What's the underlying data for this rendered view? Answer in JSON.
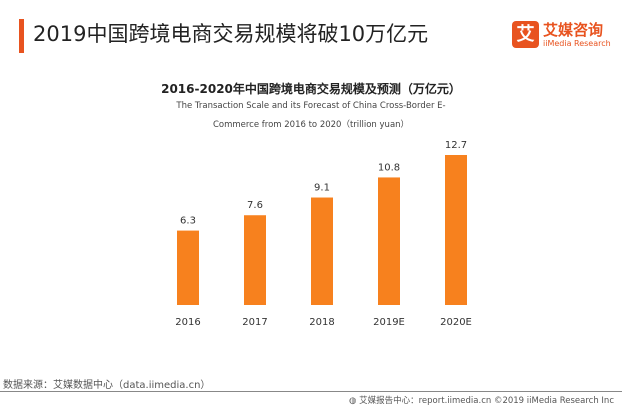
{
  "header": {
    "title": "2019中国跨境电商交易规模将破10万亿元",
    "logo_cn": "艾媒咨询",
    "logo_en": "iiMedia Research",
    "logo_mark": "艾"
  },
  "chart_data": {
    "type": "bar",
    "title": "2016-2020年中国跨境电商交易规模及预测（万亿元）",
    "subtitle_line1": "The Transaction Scale and its Forecast of China Cross-Border E-",
    "subtitle_line2": "Commerce from 2016 to 2020（trillion yuan）",
    "categories": [
      "2016",
      "2017",
      "2018",
      "2019E",
      "2020E"
    ],
    "values": [
      6.3,
      7.6,
      9.1,
      10.8,
      12.7
    ],
    "value_labels": [
      "6.3",
      "7.6",
      "9.1",
      "10.8",
      "12.7"
    ],
    "color": "#f7811e",
    "ylim": [
      0,
      12.7
    ],
    "grid": false
  },
  "footer": {
    "source": "数据来源：艾媒数据中心（data.iimedia.cn）",
    "copyright": "艾媒报告中心：report.iimedia.cn ©2019 iiMedia Research Inc"
  }
}
